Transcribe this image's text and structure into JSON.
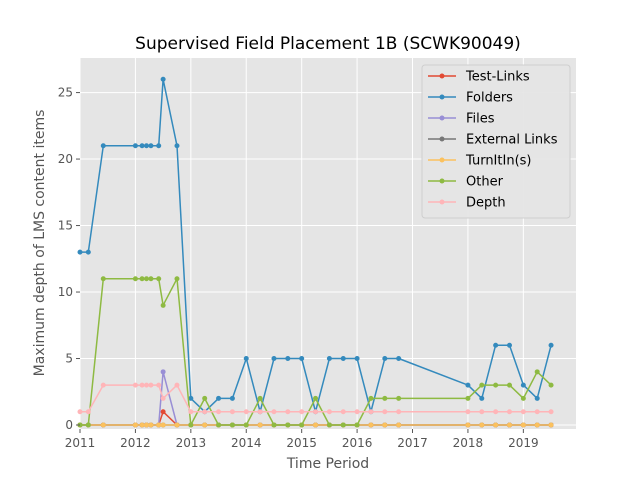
{
  "chart_data": {
    "type": "line",
    "title": "Supervised Field Placement 1B (SCWK90049)",
    "xlabel": "Time Period",
    "ylabel": "Maximum depth of LMS content items",
    "xlim": [
      2011.0,
      2019.95
    ],
    "ylim": [
      -0.3,
      27.6
    ],
    "x_ticks": [
      2011,
      2012,
      2013,
      2014,
      2015,
      2016,
      2017,
      2018,
      2019
    ],
    "x_tick_labels": [
      "2011",
      "2012",
      "2013",
      "2014",
      "2015",
      "2016",
      "2017",
      "2018",
      "2019"
    ],
    "y_ticks": [
      0,
      5,
      10,
      15,
      20,
      25
    ],
    "y_tick_labels": [
      "0",
      "5",
      "10",
      "15",
      "20",
      "25"
    ],
    "grid": true,
    "legend_position": "upper right",
    "x": [
      2011.0,
      2011.15,
      2011.42,
      2012.0,
      2012.12,
      2012.2,
      2012.28,
      2012.42,
      2012.5,
      2012.75,
      2013.0,
      2013.25,
      2013.5,
      2013.75,
      2014.0,
      2014.25,
      2014.5,
      2014.75,
      2015.0,
      2015.25,
      2015.5,
      2015.75,
      2016.0,
      2016.25,
      2016.5,
      2016.75,
      2018.0,
      2018.25,
      2018.5,
      2018.75,
      2019.0,
      2019.25,
      2019.5
    ],
    "series": [
      {
        "name": "Test-Links",
        "color": "#E24A33",
        "values": [
          0,
          0,
          0,
          0,
          0,
          0,
          0,
          0,
          1,
          0,
          0,
          0,
          0,
          0,
          0,
          0,
          0,
          0,
          0,
          0,
          0,
          0,
          0,
          0,
          0,
          0,
          0,
          0,
          0,
          0,
          0,
          0,
          0
        ]
      },
      {
        "name": "Folders",
        "color": "#348ABD",
        "values": [
          13,
          13,
          21,
          21,
          21,
          21,
          21,
          21,
          26,
          21,
          2,
          1,
          2,
          2,
          5,
          1,
          5,
          5,
          5,
          1,
          5,
          5,
          5,
          1,
          5,
          5,
          3,
          2,
          6,
          6,
          3,
          2,
          6
        ]
      },
      {
        "name": "Files",
        "color": "#988ED5",
        "values": [
          0,
          0,
          0,
          0,
          0,
          0,
          0,
          0,
          4,
          0,
          0,
          0,
          0,
          0,
          0,
          0,
          0,
          0,
          0,
          0,
          0,
          0,
          0,
          0,
          0,
          0,
          0,
          0,
          0,
          0,
          0,
          0,
          0
        ]
      },
      {
        "name": "External Links",
        "color": "#777777",
        "values": [
          0,
          0,
          0,
          0,
          0,
          0,
          0,
          0,
          0,
          0,
          0,
          0,
          0,
          0,
          0,
          0,
          0,
          0,
          0,
          0,
          0,
          0,
          0,
          0,
          0,
          0,
          0,
          0,
          0,
          0,
          0,
          0,
          0
        ]
      },
      {
        "name": "TurnItIn(s)",
        "color": "#FBC15E",
        "values": [
          0,
          0,
          0,
          0,
          0,
          0,
          0,
          0,
          0,
          0,
          0,
          0,
          0,
          0,
          0,
          0,
          0,
          0,
          0,
          0,
          0,
          0,
          0,
          0,
          0,
          0,
          0,
          0,
          0,
          0,
          0,
          0,
          0
        ]
      },
      {
        "name": "Other",
        "color": "#8EBA42",
        "values": [
          0,
          0,
          11,
          11,
          11,
          11,
          11,
          11,
          9,
          11,
          0,
          2,
          0,
          0,
          0,
          2,
          0,
          0,
          0,
          2,
          0,
          0,
          0,
          2,
          2,
          2,
          2,
          3,
          3,
          3,
          2,
          4,
          3
        ]
      },
      {
        "name": "Depth",
        "color": "#FFB5B8",
        "values": [
          1,
          1,
          3,
          3,
          3,
          3,
          3,
          3,
          2,
          3,
          1,
          1,
          1,
          1,
          1,
          1,
          1,
          1,
          1,
          1,
          1,
          1,
          1,
          1,
          1,
          1,
          1,
          1,
          1,
          1,
          1,
          1,
          1
        ]
      }
    ]
  }
}
